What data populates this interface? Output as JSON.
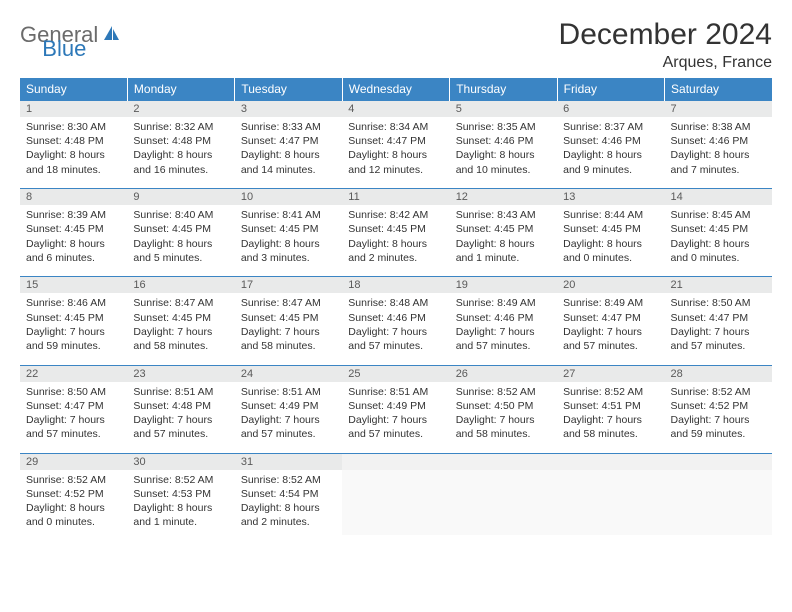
{
  "logo": {
    "text1": "General",
    "text2": "Blue"
  },
  "title": "December 2024",
  "location": "Arques, France",
  "colors": {
    "header_bg": "#3b85c4",
    "header_text": "#ffffff",
    "daynum_bg": "#e9eaea",
    "daynum_text": "#5a5a5a",
    "body_text": "#333333",
    "logo_gray": "#6b6b6b",
    "logo_blue": "#2d78b8",
    "border": "#3b85c4"
  },
  "weekdays": [
    "Sunday",
    "Monday",
    "Tuesday",
    "Wednesday",
    "Thursday",
    "Friday",
    "Saturday"
  ],
  "weeks": [
    [
      {
        "n": "1",
        "sr": "8:30 AM",
        "ss": "4:48 PM",
        "dl": "8 hours and 18 minutes."
      },
      {
        "n": "2",
        "sr": "8:32 AM",
        "ss": "4:48 PM",
        "dl": "8 hours and 16 minutes."
      },
      {
        "n": "3",
        "sr": "8:33 AM",
        "ss": "4:47 PM",
        "dl": "8 hours and 14 minutes."
      },
      {
        "n": "4",
        "sr": "8:34 AM",
        "ss": "4:47 PM",
        "dl": "8 hours and 12 minutes."
      },
      {
        "n": "5",
        "sr": "8:35 AM",
        "ss": "4:46 PM",
        "dl": "8 hours and 10 minutes."
      },
      {
        "n": "6",
        "sr": "8:37 AM",
        "ss": "4:46 PM",
        "dl": "8 hours and 9 minutes."
      },
      {
        "n": "7",
        "sr": "8:38 AM",
        "ss": "4:46 PM",
        "dl": "8 hours and 7 minutes."
      }
    ],
    [
      {
        "n": "8",
        "sr": "8:39 AM",
        "ss": "4:45 PM",
        "dl": "8 hours and 6 minutes."
      },
      {
        "n": "9",
        "sr": "8:40 AM",
        "ss": "4:45 PM",
        "dl": "8 hours and 5 minutes."
      },
      {
        "n": "10",
        "sr": "8:41 AM",
        "ss": "4:45 PM",
        "dl": "8 hours and 3 minutes."
      },
      {
        "n": "11",
        "sr": "8:42 AM",
        "ss": "4:45 PM",
        "dl": "8 hours and 2 minutes."
      },
      {
        "n": "12",
        "sr": "8:43 AM",
        "ss": "4:45 PM",
        "dl": "8 hours and 1 minute."
      },
      {
        "n": "13",
        "sr": "8:44 AM",
        "ss": "4:45 PM",
        "dl": "8 hours and 0 minutes."
      },
      {
        "n": "14",
        "sr": "8:45 AM",
        "ss": "4:45 PM",
        "dl": "8 hours and 0 minutes."
      }
    ],
    [
      {
        "n": "15",
        "sr": "8:46 AM",
        "ss": "4:45 PM",
        "dl": "7 hours and 59 minutes."
      },
      {
        "n": "16",
        "sr": "8:47 AM",
        "ss": "4:45 PM",
        "dl": "7 hours and 58 minutes."
      },
      {
        "n": "17",
        "sr": "8:47 AM",
        "ss": "4:45 PM",
        "dl": "7 hours and 58 minutes."
      },
      {
        "n": "18",
        "sr": "8:48 AM",
        "ss": "4:46 PM",
        "dl": "7 hours and 57 minutes."
      },
      {
        "n": "19",
        "sr": "8:49 AM",
        "ss": "4:46 PM",
        "dl": "7 hours and 57 minutes."
      },
      {
        "n": "20",
        "sr": "8:49 AM",
        "ss": "4:47 PM",
        "dl": "7 hours and 57 minutes."
      },
      {
        "n": "21",
        "sr": "8:50 AM",
        "ss": "4:47 PM",
        "dl": "7 hours and 57 minutes."
      }
    ],
    [
      {
        "n": "22",
        "sr": "8:50 AM",
        "ss": "4:47 PM",
        "dl": "7 hours and 57 minutes."
      },
      {
        "n": "23",
        "sr": "8:51 AM",
        "ss": "4:48 PM",
        "dl": "7 hours and 57 minutes."
      },
      {
        "n": "24",
        "sr": "8:51 AM",
        "ss": "4:49 PM",
        "dl": "7 hours and 57 minutes."
      },
      {
        "n": "25",
        "sr": "8:51 AM",
        "ss": "4:49 PM",
        "dl": "7 hours and 57 minutes."
      },
      {
        "n": "26",
        "sr": "8:52 AM",
        "ss": "4:50 PM",
        "dl": "7 hours and 58 minutes."
      },
      {
        "n": "27",
        "sr": "8:52 AM",
        "ss": "4:51 PM",
        "dl": "7 hours and 58 minutes."
      },
      {
        "n": "28",
        "sr": "8:52 AM",
        "ss": "4:52 PM",
        "dl": "7 hours and 59 minutes."
      }
    ],
    [
      {
        "n": "29",
        "sr": "8:52 AM",
        "ss": "4:52 PM",
        "dl": "8 hours and 0 minutes."
      },
      {
        "n": "30",
        "sr": "8:52 AM",
        "ss": "4:53 PM",
        "dl": "8 hours and 1 minute."
      },
      {
        "n": "31",
        "sr": "8:52 AM",
        "ss": "4:54 PM",
        "dl": "8 hours and 2 minutes."
      },
      null,
      null,
      null,
      null
    ]
  ],
  "labels": {
    "sunrise": "Sunrise:",
    "sunset": "Sunset:",
    "daylight": "Daylight:"
  }
}
